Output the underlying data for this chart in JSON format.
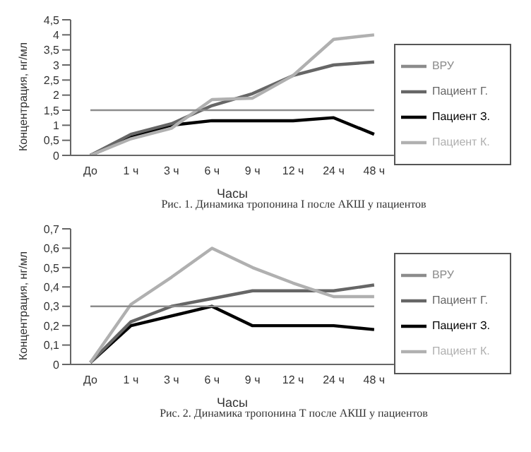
{
  "chart_data": [
    {
      "type": "line",
      "xlabel": "Часы",
      "ylabel": "Концентрация, нг/мл",
      "categories": [
        "До",
        "1 ч",
        "3 ч",
        "6 ч",
        "9 ч",
        "12 ч",
        "24 ч",
        "48 ч"
      ],
      "series": [
        {
          "name": "Пациент З.",
          "color": "#000000",
          "values": [
            0,
            0.6,
            1.0,
            1.15,
            1.15,
            1.15,
            1.25,
            0.7
          ]
        },
        {
          "name": "Пациент Г.",
          "color": "#666666",
          "values": [
            0,
            0.7,
            1.05,
            1.65,
            2.05,
            2.65,
            3.0,
            3.1
          ]
        },
        {
          "name": "Пациент К.",
          "color": "#b0b0b0",
          "values": [
            0,
            0.55,
            0.9,
            1.85,
            1.9,
            2.65,
            3.85,
            4.0
          ]
        },
        {
          "name": "ВРУ",
          "color": "#8c8c8c",
          "values": [
            1.5,
            1.5,
            1.5,
            1.5,
            1.5,
            1.5,
            1.5,
            1.5
          ]
        }
      ],
      "ylim": [
        0,
        4.5
      ],
      "yticks": [
        0,
        {
          "value": 0.5,
          "label": "0,5"
        },
        1,
        {
          "value": 1.5,
          "label": "1,5"
        },
        2,
        {
          "value": 2.5,
          "label": "2,5"
        },
        3,
        {
          "value": 3.5,
          "label": "3,5"
        },
        4,
        {
          "value": 4.5,
          "label": "4,5"
        }
      ],
      "grid": false,
      "legend": "right",
      "marker": "none",
      "line_style": "solid",
      "annotations": [
        "Рис. 1. Динамика тропонина I после АКШ у пациентов"
      ]
    },
    {
      "type": "line",
      "xlabel": "Часы",
      "ylabel": "Концентрация, нг/мл",
      "categories": [
        "До",
        "1 ч",
        "3 ч",
        "6 ч",
        "9 ч",
        "12 ч",
        "24 ч",
        "48 ч"
      ],
      "series": [
        {
          "name": "Пациент З.",
          "color": "#000000",
          "values": [
            0.01,
            0.2,
            0.25,
            0.3,
            0.2,
            0.2,
            0.2,
            0.18
          ]
        },
        {
          "name": "Пациент Г.",
          "color": "#666666",
          "values": [
            0.01,
            0.22,
            0.3,
            0.34,
            0.38,
            0.38,
            0.38,
            0.41
          ]
        },
        {
          "name": "Пациент К.",
          "color": "#b0b0b0",
          "values": [
            0.01,
            0.31,
            0.45,
            0.6,
            0.5,
            0.42,
            0.35,
            0.35
          ]
        },
        {
          "name": "ВРУ",
          "color": "#8c8c8c",
          "values": [
            0.3,
            0.3,
            0.3,
            0.3,
            0.3,
            0.3,
            0.3,
            0.3
          ]
        }
      ],
      "ylim": [
        0,
        0.7
      ],
      "yticks": [
        0,
        {
          "value": 0.1,
          "label": "0,1"
        },
        {
          "value": 0.2,
          "label": "0,2"
        },
        {
          "value": 0.3,
          "label": "0,3"
        },
        {
          "value": 0.4,
          "label": "0,4"
        },
        {
          "value": 0.5,
          "label": "0,5"
        },
        {
          "value": 0.6,
          "label": "0,6"
        },
        {
          "value": 0.7,
          "label": "0,7"
        }
      ],
      "grid": false,
      "legend": "right",
      "marker": "none",
      "line_style": "solid",
      "annotations": [
        "Рис. 2. Динамика тропонина Т после АКШ у пациентов"
      ]
    }
  ]
}
